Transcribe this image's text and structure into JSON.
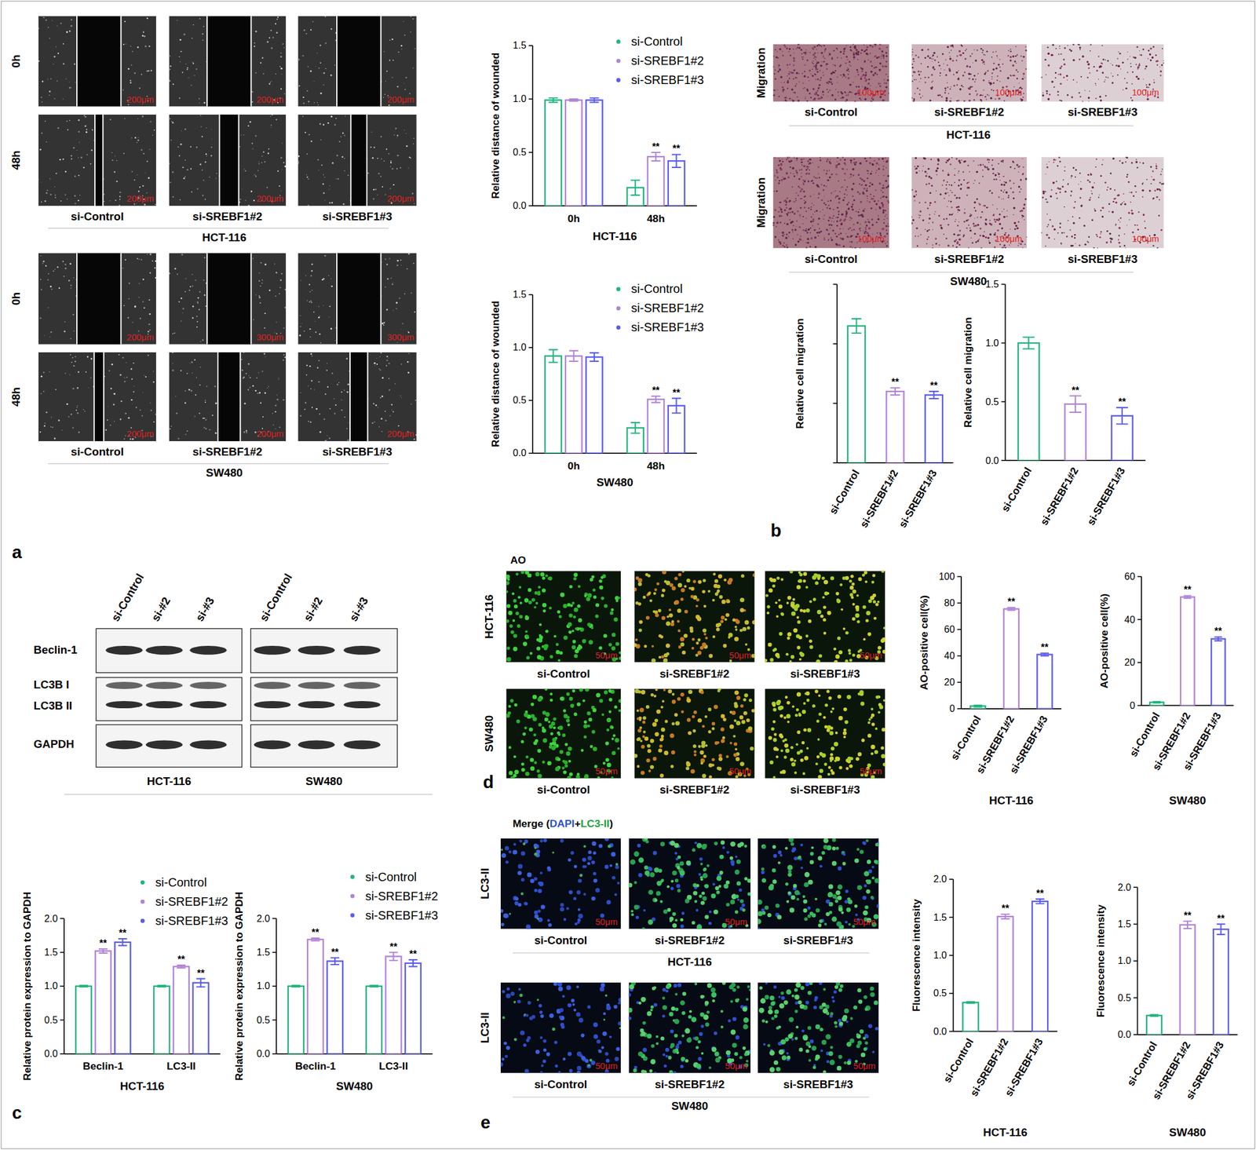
{
  "panel_labels": [
    "a",
    "b",
    "c",
    "d",
    "e"
  ],
  "panel_a_images": {
    "row_labels": [
      "0h",
      "48h"
    ],
    "column_labels": [
      "si-Control",
      "si-SREBF1#2",
      "si-SREBF1#3"
    ],
    "cell_lines": [
      "HCT-116",
      "SW480"
    ],
    "scale_bars": [
      [
        [
          "200μm",
          "200μm",
          "200μm"
        ],
        [
          "200μm",
          "200μm",
          "200μm"
        ]
      ],
      [
        [
          "200μm",
          "300μm",
          "300μm"
        ],
        [
          "200μm",
          "200μm",
          "200μm"
        ]
      ]
    ]
  },
  "panel_b_images": {
    "row_label": "Migration",
    "column_labels": [
      "si-Control",
      "si-SREBF1#2",
      "si-SREBF1#3"
    ],
    "cell_lines": [
      "HCT-116",
      "SW480"
    ],
    "scale_bar": "100μm"
  },
  "panel_c_blot": {
    "lanes": [
      "si-Control",
      "si-#2",
      "si-#3"
    ],
    "bands": [
      "Beclin-1",
      "LC3B I",
      "LC3B II",
      "GAPDH"
    ],
    "cell_lines": [
      "HCT-116",
      "SW480"
    ]
  },
  "panel_d_images": {
    "title": "AO",
    "row_labels": [
      "HCT-116",
      "SW480"
    ],
    "column_labels": [
      "si-Control",
      "si-SREBF1#2",
      "si-SREBF1#3"
    ],
    "scale_bar": "50μm"
  },
  "panel_e_images": {
    "title_parts": [
      "Merge (",
      "DAPI",
      "+",
      "LC3-II",
      ")"
    ],
    "row_label": "LC3-II",
    "column_labels": [
      "si-Control",
      "si-SREBF1#2",
      "si-SREBF1#3"
    ],
    "cell_lines": [
      "HCT-116",
      "SW480"
    ],
    "scale_bar": "50μm"
  },
  "chart_data": [
    {
      "type": "bar",
      "ylabel": "Relative distance of wounded",
      "xlabel": "HCT-116",
      "categories": [
        "0h",
        "48h"
      ],
      "legend": "top-right",
      "ylim": [
        0,
        1.5
      ],
      "yticks": [
        {
          "value": 0,
          "label": "0.0"
        },
        {
          "value": 0.5,
          "label": "0.5"
        },
        {
          "value": 1,
          "label": "1.0"
        },
        {
          "value": 1.5,
          "label": "1.5"
        }
      ],
      "series": [
        {
          "name": "si-Control",
          "color": "#21b57c",
          "values": [
            0.99,
            0.17
          ],
          "errors": [
            0.02,
            0.07
          ],
          "significance": [
            null,
            null
          ]
        },
        {
          "name": "si-SREBF1#2",
          "color": "#b184d4",
          "values": [
            0.99,
            0.46
          ],
          "errors": [
            0.01,
            0.04
          ],
          "significance": [
            null,
            "**"
          ]
        },
        {
          "name": "si-SREBF1#3",
          "color": "#5b5cf0",
          "values": [
            0.99,
            0.42
          ],
          "errors": [
            0.02,
            0.06
          ],
          "significance": [
            null,
            "**"
          ]
        }
      ]
    },
    {
      "type": "bar",
      "ylabel": "Relative distance of wounded",
      "xlabel": "SW480",
      "categories": [
        "0h",
        "48h"
      ],
      "legend": "top-right",
      "ylim": [
        0,
        1.5
      ],
      "yticks": [
        {
          "value": 0,
          "label": "0.0"
        },
        {
          "value": 0.5,
          "label": "0.5"
        },
        {
          "value": 1,
          "label": "1.0"
        },
        {
          "value": 1.5,
          "label": "1.5"
        }
      ],
      "series": [
        {
          "name": "si-Control",
          "color": "#21b57c",
          "values": [
            0.92,
            0.24
          ],
          "errors": [
            0.06,
            0.05
          ],
          "significance": [
            null,
            null
          ]
        },
        {
          "name": "si-SREBF1#2",
          "color": "#b184d4",
          "values": [
            0.92,
            0.51
          ],
          "errors": [
            0.05,
            0.03
          ],
          "significance": [
            null,
            "**"
          ]
        },
        {
          "name": "si-SREBF1#3",
          "color": "#5b5cf0",
          "values": [
            0.91,
            0.45
          ],
          "errors": [
            0.04,
            0.07
          ],
          "significance": [
            null,
            "**"
          ]
        }
      ]
    },
    {
      "type": "bar",
      "ylabel": "Relative cell migration",
      "categories": [
        "si-Control",
        "si-SREBF1#2",
        "si-SREBF1#3"
      ],
      "values": [
        1.15,
        0.6,
        0.57
      ],
      "errors": [
        0.06,
        0.03,
        0.03
      ],
      "significance": [
        null,
        "**",
        "**"
      ],
      "colors": [
        "#21b57c",
        "#b184d4",
        "#5b5cf0"
      ],
      "ylim": [
        0,
        1.5
      ],
      "yticks": [
        0,
        0.5,
        1,
        1.5
      ],
      "tick_labels": "x"
    },
    {
      "type": "bar",
      "ylabel": "Relative cell migration",
      "categories": [
        "si-Control",
        "si-SREBF1#2",
        "si-SREBF1#3"
      ],
      "values": [
        1.0,
        0.48,
        0.38
      ],
      "errors": [
        0.05,
        0.07,
        0.07
      ],
      "significance": [
        null,
        "**",
        "**"
      ],
      "colors": [
        "#21b57c",
        "#b184d4",
        "#5b5cf0"
      ],
      "ylim": [
        0,
        1.5
      ],
      "yticks": [
        {
          "value": 0,
          "label": "0.0"
        },
        {
          "value": 0.5,
          "label": "0.5"
        },
        {
          "value": 1,
          "label": "1.0"
        },
        {
          "value": 1.5,
          "label": "1.5"
        }
      ]
    },
    {
      "type": "bar",
      "ylabel": "Relative protein expression to GAPDH",
      "xlabel": "HCT-116",
      "categories": [
        "Beclin-1",
        "LC3-II"
      ],
      "legend": "top-right",
      "ylim": [
        0,
        2
      ],
      "yticks": [
        {
          "value": 0,
          "label": "0.0"
        },
        {
          "value": 0.5,
          "label": "0.5"
        },
        {
          "value": 1,
          "label": "1.0"
        },
        {
          "value": 1.5,
          "label": "1.5"
        },
        {
          "value": 2,
          "label": "2.0"
        }
      ],
      "series": [
        {
          "name": "si-Control",
          "color": "#21b57c",
          "values": [
            1.0,
            1.0
          ],
          "errors": [
            0.01,
            0.01
          ],
          "significance": [
            null,
            null
          ]
        },
        {
          "name": "si-SREBF1#2",
          "color": "#b184d4",
          "values": [
            1.52,
            1.29
          ],
          "errors": [
            0.03,
            0.02
          ],
          "significance": [
            "**",
            "**"
          ]
        },
        {
          "name": "si-SREBF1#3",
          "color": "#5b5cf0",
          "values": [
            1.65,
            1.05
          ],
          "errors": [
            0.05,
            0.06
          ],
          "significance": [
            "**",
            "**"
          ]
        }
      ]
    },
    {
      "type": "bar",
      "ylabel": "Relative protein expression to GAPDH",
      "xlabel": "SW480",
      "categories": [
        "Beclin-1",
        "LC3-II"
      ],
      "legend": "top-right",
      "ylim": [
        0,
        2
      ],
      "yticks": [
        {
          "value": 0,
          "label": "0.0"
        },
        {
          "value": 0.5,
          "label": "0.5"
        },
        {
          "value": 1,
          "label": "1.0"
        },
        {
          "value": 1.5,
          "label": "1.5"
        },
        {
          "value": 2,
          "label": "2.0"
        }
      ],
      "series": [
        {
          "name": "si-Control",
          "color": "#21b57c",
          "values": [
            1.0,
            1.0
          ],
          "errors": [
            0.01,
            0.01
          ],
          "significance": [
            null,
            null
          ]
        },
        {
          "name": "si-SREBF1#2",
          "color": "#b184d4",
          "values": [
            1.69,
            1.44
          ],
          "errors": [
            0.02,
            0.06
          ],
          "significance": [
            "**",
            "**"
          ]
        },
        {
          "name": "si-SREBF1#3",
          "color": "#5b5cf0",
          "values": [
            1.37,
            1.34
          ],
          "errors": [
            0.05,
            0.05
          ],
          "significance": [
            "**",
            "**"
          ]
        }
      ]
    },
    {
      "type": "bar",
      "ylabel": "AO-positive cell(%)",
      "xlabel": "HCT-116",
      "categories": [
        "si-Control",
        "si-SREBF1#2",
        "si-SREBF1#3"
      ],
      "values": [
        2,
        75.5,
        41
      ],
      "errors": [
        0.6,
        1,
        1
      ],
      "significance": [
        null,
        "**",
        "**"
      ],
      "colors": [
        "#21b57c",
        "#b184d4",
        "#5b5cf0"
      ],
      "ylim": [
        0,
        100
      ],
      "yticks": [
        0,
        20,
        40,
        60,
        80,
        100
      ]
    },
    {
      "type": "bar",
      "ylabel": "AO-positive cell(%)",
      "xlabel": "SW480",
      "categories": [
        "si-Control",
        "si-SREBF1#2",
        "si-SREBF1#3"
      ],
      "values": [
        1.5,
        50.5,
        31
      ],
      "errors": [
        0.3,
        0.6,
        0.9
      ],
      "significance": [
        null,
        "**",
        "**"
      ],
      "colors": [
        "#21b57c",
        "#b184d4",
        "#5b5cf0"
      ],
      "ylim": [
        0,
        60
      ],
      "yticks": [
        0,
        20,
        40,
        60
      ]
    },
    {
      "type": "bar",
      "ylabel": "Fluorescence intensity",
      "xlabel": "HCT-116",
      "categories": [
        "si-Control",
        "si-SREBF1#2",
        "si-SREBF1#3"
      ],
      "values": [
        0.38,
        1.51,
        1.71
      ],
      "errors": [
        0.01,
        0.03,
        0.03
      ],
      "significance": [
        null,
        "**",
        "**"
      ],
      "colors": [
        "#21b57c",
        "#b184d4",
        "#5b5cf0"
      ],
      "ylim": [
        0,
        2
      ],
      "yticks": [
        {
          "value": 0,
          "label": "0.0"
        },
        {
          "value": 0.5,
          "label": "0.5"
        },
        {
          "value": 1,
          "label": "1.0"
        },
        {
          "value": 1.5,
          "label": "1.5"
        },
        {
          "value": 2,
          "label": "2.0"
        }
      ]
    },
    {
      "type": "bar",
      "ylabel": "Fluorescence intensity",
      "xlabel": "SW480",
      "categories": [
        "si-Control",
        "si-SREBF1#2",
        "si-SREBF1#3"
      ],
      "values": [
        0.26,
        1.49,
        1.43
      ],
      "errors": [
        0.01,
        0.05,
        0.07
      ],
      "significance": [
        null,
        "**",
        "**"
      ],
      "colors": [
        "#21b57c",
        "#b184d4",
        "#5b5cf0"
      ],
      "ylim": [
        0,
        2
      ],
      "yticks": [
        {
          "value": 0,
          "label": "0.0"
        },
        {
          "value": 0.5,
          "label": "0.5"
        },
        {
          "value": 1,
          "label": "1.0"
        },
        {
          "value": 1.5,
          "label": "1.5"
        },
        {
          "value": 2,
          "label": "2.0"
        }
      ]
    }
  ]
}
